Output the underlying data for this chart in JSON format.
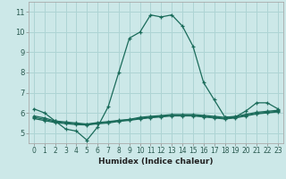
{
  "xlabel": "Humidex (Indice chaleur)",
  "bg_color": "#cce8e8",
  "grid_color": "#aed4d4",
  "line_color": "#1a6b5a",
  "xlim": [
    -0.5,
    23.5
  ],
  "ylim": [
    4.5,
    11.5
  ],
  "xticks": [
    0,
    1,
    2,
    3,
    4,
    5,
    6,
    7,
    8,
    9,
    10,
    11,
    12,
    13,
    14,
    15,
    16,
    17,
    18,
    19,
    20,
    21,
    22,
    23
  ],
  "yticks": [
    5,
    6,
    7,
    8,
    9,
    10,
    11
  ],
  "line1_x": [
    0,
    1,
    2,
    3,
    4,
    5,
    6,
    7,
    8,
    9,
    10,
    11,
    12,
    13,
    14,
    15,
    16,
    17,
    18,
    19,
    20,
    21,
    22,
    23
  ],
  "line1_y": [
    6.2,
    6.0,
    5.6,
    5.2,
    5.1,
    4.65,
    5.3,
    6.3,
    8.0,
    9.7,
    10.0,
    10.85,
    10.75,
    10.85,
    10.3,
    9.3,
    7.5,
    6.65,
    5.8,
    5.8,
    6.1,
    6.5,
    6.5,
    6.2
  ],
  "line2_x": [
    0,
    1,
    2,
    3,
    4,
    5,
    6,
    7,
    8,
    9,
    10,
    11,
    12,
    13,
    14,
    15,
    16,
    17,
    18,
    19,
    20,
    21,
    22,
    23
  ],
  "line2_y": [
    5.85,
    5.75,
    5.6,
    5.55,
    5.5,
    5.45,
    5.52,
    5.57,
    5.63,
    5.68,
    5.78,
    5.83,
    5.87,
    5.92,
    5.92,
    5.92,
    5.88,
    5.83,
    5.78,
    5.83,
    5.93,
    6.03,
    6.08,
    6.13
  ],
  "line3_x": [
    0,
    1,
    2,
    3,
    4,
    5,
    6,
    7,
    8,
    9,
    10,
    11,
    12,
    13,
    14,
    15,
    16,
    17,
    18,
    19,
    20,
    21,
    22,
    23
  ],
  "line3_y": [
    5.78,
    5.68,
    5.56,
    5.51,
    5.46,
    5.43,
    5.49,
    5.53,
    5.61,
    5.66,
    5.73,
    5.79,
    5.83,
    5.88,
    5.88,
    5.88,
    5.83,
    5.78,
    5.73,
    5.78,
    5.88,
    5.98,
    6.03,
    6.08
  ],
  "line4_x": [
    0,
    1,
    2,
    3,
    4,
    5,
    6,
    7,
    8,
    9,
    10,
    11,
    12,
    13,
    14,
    15,
    16,
    17,
    18,
    19,
    20,
    21,
    22,
    23
  ],
  "line4_y": [
    5.72,
    5.62,
    5.52,
    5.47,
    5.42,
    5.4,
    5.46,
    5.5,
    5.58,
    5.63,
    5.7,
    5.76,
    5.8,
    5.85,
    5.85,
    5.85,
    5.8,
    5.75,
    5.7,
    5.75,
    5.85,
    5.95,
    6.0,
    6.05
  ]
}
